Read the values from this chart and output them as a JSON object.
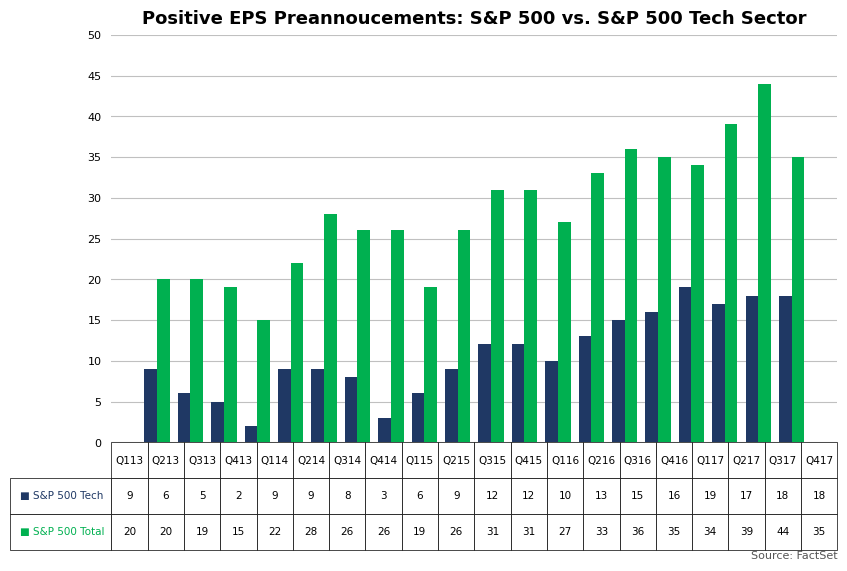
{
  "title": "Positive EPS Preannoucements: S&P 500 vs. S&P 500 Tech Sector",
  "categories": [
    "Q113",
    "Q213",
    "Q313",
    "Q413",
    "Q114",
    "Q214",
    "Q314",
    "Q414",
    "Q115",
    "Q215",
    "Q315",
    "Q415",
    "Q116",
    "Q216",
    "Q316",
    "Q416",
    "Q117",
    "Q217",
    "Q317",
    "Q417"
  ],
  "sp500_tech": [
    9,
    6,
    5,
    2,
    9,
    9,
    8,
    3,
    6,
    9,
    12,
    12,
    10,
    13,
    15,
    16,
    19,
    17,
    18,
    18
  ],
  "sp500_total": [
    20,
    20,
    19,
    15,
    22,
    28,
    26,
    26,
    19,
    26,
    31,
    31,
    27,
    33,
    36,
    35,
    34,
    39,
    44,
    35
  ],
  "color_tech": "#1f3864",
  "color_total": "#00b050",
  "ylim": [
    0,
    50
  ],
  "yticks": [
    0,
    5,
    10,
    15,
    20,
    25,
    30,
    35,
    40,
    45,
    50
  ],
  "legend_tech": "S&P 500 Tech",
  "legend_total": "S&P 500 Total",
  "source": "Source: FactSet",
  "background_color": "#ffffff",
  "grid_color": "#c0c0c0",
  "title_fontsize": 13,
  "axis_fontsize": 8,
  "table_fontsize": 7.5
}
